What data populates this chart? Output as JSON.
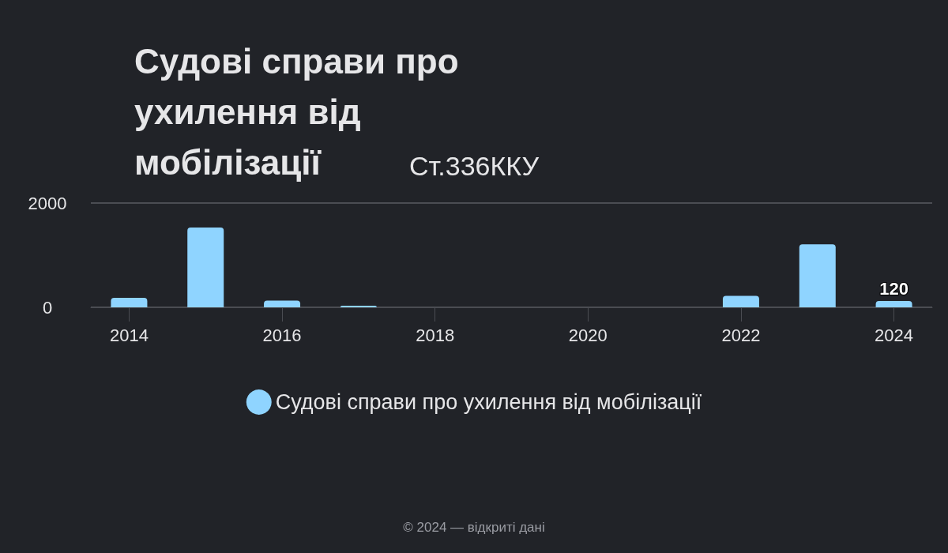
{
  "chart_data": {
    "type": "bar",
    "title": "Судові справи про ухилення від мобілізації",
    "subtitle": "Ст.336ККУ",
    "categories": [
      "2014",
      null,
      "2016",
      null,
      "2018",
      null,
      "2020",
      null,
      "2022",
      null,
      "2024"
    ],
    "series": [
      {
        "name": "Судові справи про ухилення від мобілізації",
        "color": "#8fd4ff",
        "values": [
          180,
          1530,
          130,
          30,
          null,
          null,
          null,
          null,
          220,
          1210,
          120
        ],
        "value_labels": [
          null,
          null,
          null,
          null,
          null,
          null,
          null,
          null,
          null,
          null,
          "120"
        ]
      }
    ],
    "ylim": [
      0,
      2000
    ],
    "yticks": [
      0,
      2000
    ],
    "grid": "y",
    "legend": "bottom",
    "annotations": [
      "© 2024 — відкриті дані"
    ]
  }
}
